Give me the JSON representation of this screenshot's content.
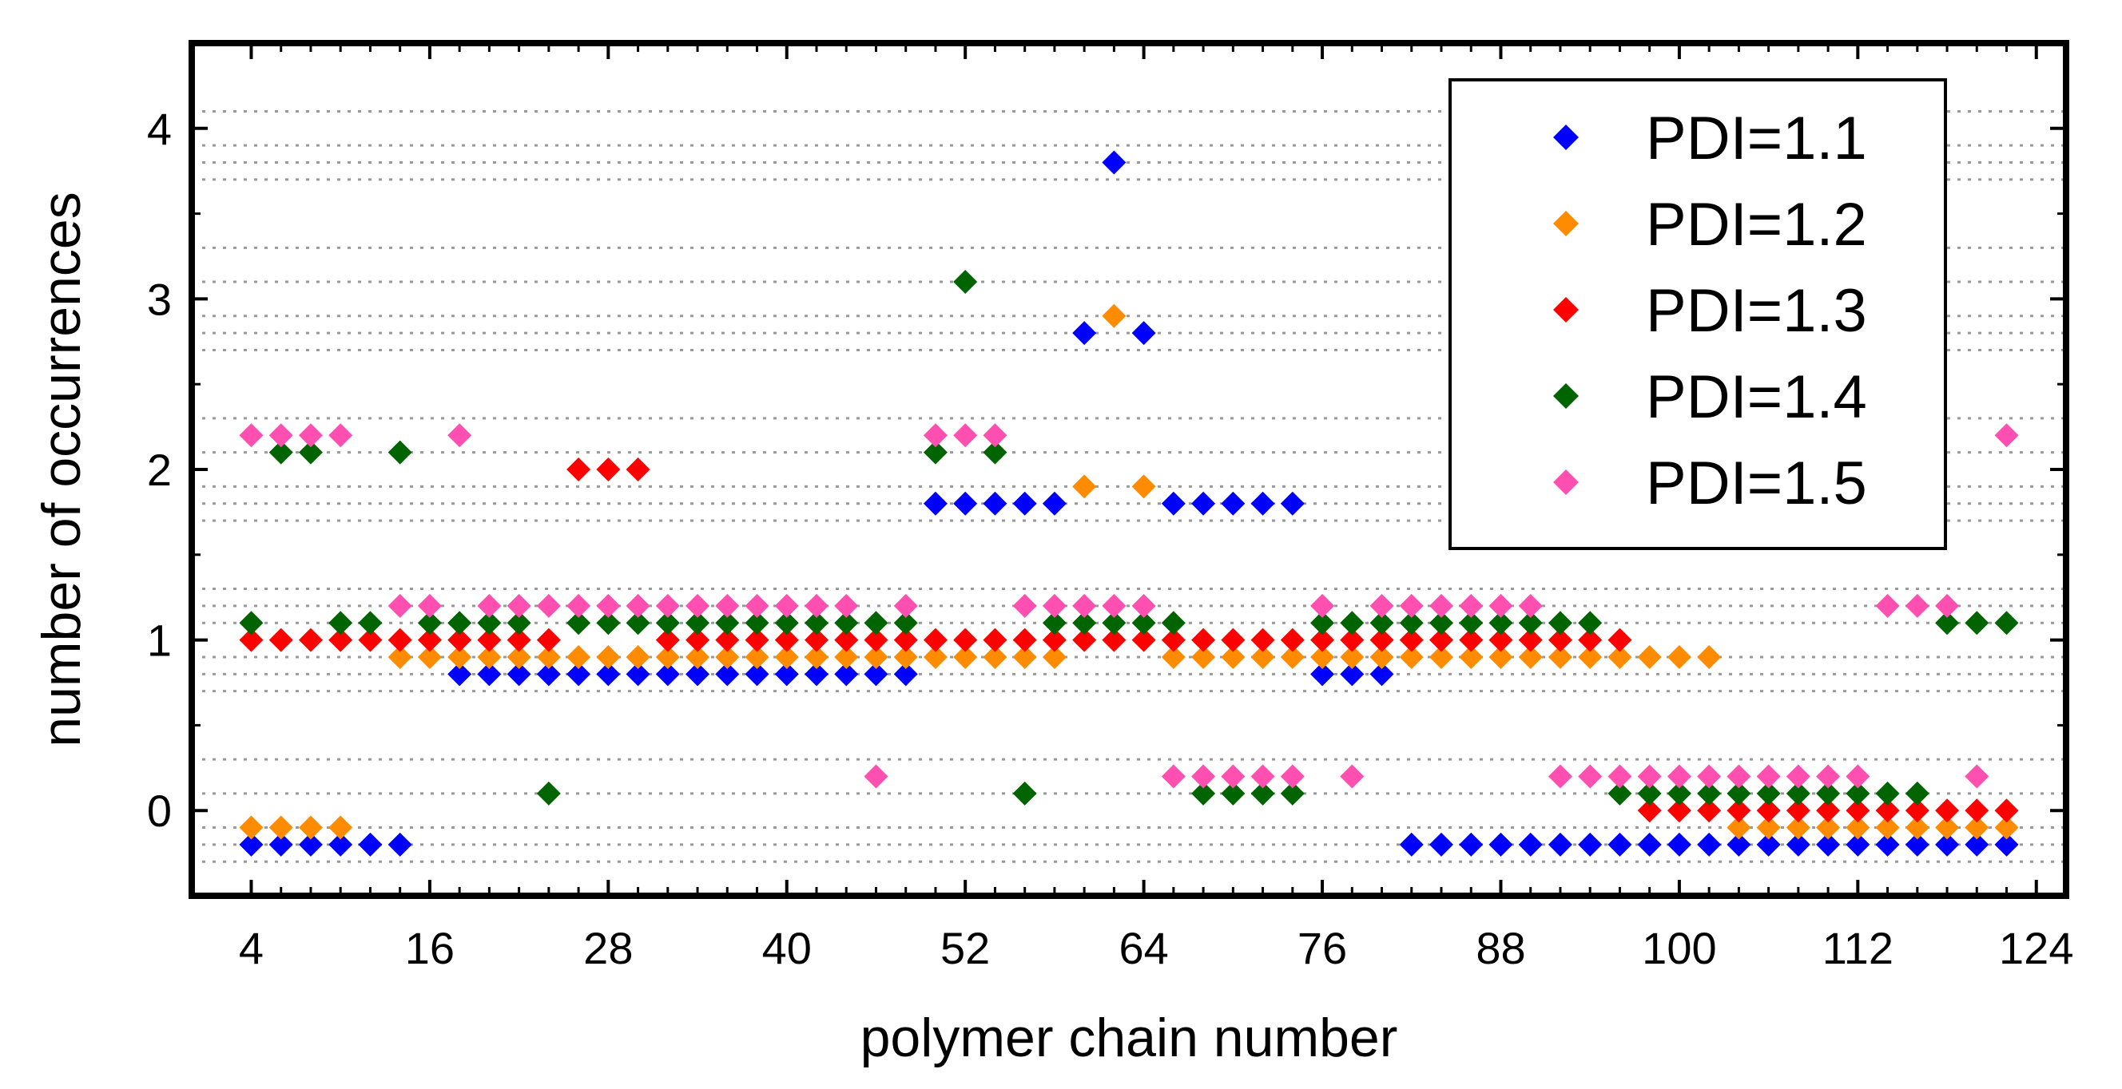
{
  "chart_data": {
    "type": "scatter",
    "xlabel": "polymer chain number",
    "ylabel": "number of occurrences",
    "xlim": [
      0,
      126
    ],
    "ylim": [
      -0.5,
      4.5
    ],
    "x_ticks": [
      4,
      16,
      28,
      40,
      52,
      64,
      76,
      88,
      100,
      112,
      124
    ],
    "y_ticks": [
      0,
      1,
      2,
      3,
      4
    ],
    "y_gridlines": [
      -0.3,
      -0.2,
      -0.1,
      0.1,
      0.3,
      0.7,
      0.8,
      0.9,
      1.1,
      1.2,
      1.3,
      1.7,
      1.8,
      1.9,
      2.1,
      2.3,
      2.7,
      2.8,
      2.9,
      3.1,
      3.3,
      3.7,
      3.8,
      3.9,
      4.1
    ],
    "grid_style": "dotted horizontal",
    "legend_position": "top-right",
    "marker": "diamond",
    "series": [
      {
        "name": "PDI=1.1",
        "color": "#0000ff",
        "offset": -0.2,
        "x": [
          4,
          6,
          8,
          10,
          12,
          14,
          18,
          20,
          22,
          24,
          26,
          28,
          30,
          32,
          34,
          36,
          38,
          40,
          42,
          44,
          46,
          48,
          50,
          52,
          54,
          56,
          58,
          60,
          62,
          64,
          66,
          68,
          70,
          72,
          74,
          76,
          78,
          80,
          82,
          84,
          86,
          88,
          90,
          92,
          94,
          96,
          98,
          100,
          102,
          104,
          106,
          108,
          110,
          112,
          114,
          116,
          118,
          120,
          122
        ],
        "y": [
          0,
          0,
          0,
          0,
          0,
          0,
          1,
          1,
          1,
          1,
          1,
          1,
          1,
          1,
          1,
          1,
          1,
          1,
          1,
          1,
          1,
          1,
          2,
          2,
          2,
          2,
          2,
          3,
          4,
          3,
          2,
          2,
          2,
          2,
          2,
          1,
          1,
          1,
          0,
          0,
          0,
          0,
          0,
          0,
          0,
          0,
          0,
          0,
          0,
          0,
          0,
          0,
          0,
          0,
          0,
          0,
          0,
          0,
          0
        ]
      },
      {
        "name": "PDI=1.2",
        "color": "#ff8c00",
        "offset": -0.1,
        "x": [
          4,
          6,
          8,
          10,
          14,
          16,
          18,
          20,
          22,
          24,
          26,
          28,
          30,
          32,
          34,
          36,
          38,
          40,
          42,
          44,
          46,
          48,
          50,
          52,
          54,
          56,
          58,
          60,
          62,
          64,
          66,
          68,
          70,
          72,
          74,
          76,
          78,
          80,
          82,
          84,
          86,
          88,
          90,
          92,
          94,
          96,
          98,
          100,
          102,
          104,
          106,
          108,
          110,
          112,
          114,
          116,
          118,
          120,
          122
        ],
        "y": [
          0,
          0,
          0,
          0,
          1,
          1,
          1,
          1,
          1,
          1,
          1,
          1,
          1,
          1,
          1,
          1,
          1,
          1,
          1,
          1,
          1,
          1,
          1,
          1,
          1,
          1,
          1,
          2,
          3,
          2,
          1,
          1,
          1,
          1,
          1,
          1,
          1,
          1,
          1,
          1,
          1,
          1,
          1,
          1,
          1,
          1,
          1,
          1,
          1,
          0,
          0,
          0,
          0,
          0,
          0,
          0,
          0,
          0,
          0
        ]
      },
      {
        "name": "PDI=1.3",
        "color": "#ff0000",
        "offset": 0.0,
        "x": [
          4,
          6,
          8,
          10,
          12,
          14,
          16,
          18,
          20,
          22,
          24,
          26,
          28,
          30,
          32,
          34,
          36,
          38,
          40,
          42,
          44,
          46,
          48,
          50,
          52,
          54,
          56,
          58,
          60,
          62,
          64,
          66,
          68,
          70,
          72,
          74,
          76,
          78,
          80,
          82,
          84,
          86,
          88,
          90,
          92,
          94,
          96,
          98,
          100,
          102,
          104,
          106,
          108,
          110,
          112,
          114,
          116,
          118,
          120,
          122
        ],
        "y": [
          1,
          1,
          1,
          1,
          1,
          1,
          1,
          1,
          1,
          1,
          1,
          2,
          2,
          2,
          1,
          1,
          1,
          1,
          1,
          1,
          1,
          1,
          1,
          1,
          1,
          1,
          1,
          1,
          1,
          1,
          1,
          1,
          1,
          1,
          1,
          1,
          1,
          1,
          1,
          1,
          1,
          1,
          1,
          1,
          1,
          1,
          1,
          0,
          0,
          0,
          0,
          0,
          0,
          0,
          0,
          0,
          0,
          0,
          0,
          0
        ]
      },
      {
        "name": "PDI=1.4",
        "color": "#006400",
        "offset": 0.1,
        "x": [
          4,
          6,
          8,
          10,
          12,
          14,
          16,
          18,
          20,
          22,
          24,
          26,
          28,
          30,
          32,
          34,
          36,
          38,
          40,
          42,
          44,
          46,
          48,
          50,
          52,
          54,
          56,
          58,
          60,
          62,
          64,
          66,
          68,
          70,
          72,
          74,
          76,
          78,
          80,
          82,
          84,
          86,
          88,
          90,
          92,
          94,
          96,
          98,
          100,
          102,
          104,
          106,
          108,
          110,
          112,
          114,
          116,
          118,
          120,
          122
        ],
        "y": [
          1,
          2,
          2,
          1,
          1,
          2,
          1,
          1,
          1,
          1,
          0,
          1,
          1,
          1,
          1,
          1,
          1,
          1,
          1,
          1,
          1,
          1,
          1,
          2,
          3,
          2,
          0,
          1,
          1,
          1,
          1,
          1,
          0,
          0,
          0,
          0,
          1,
          1,
          1,
          1,
          1,
          1,
          1,
          1,
          1,
          1,
          0,
          0,
          0,
          0,
          0,
          0,
          0,
          0,
          0,
          0,
          0,
          1,
          1,
          1
        ]
      },
      {
        "name": "PDI=1.5",
        "color": "#ff4fb0",
        "offset": 0.2,
        "x": [
          4,
          6,
          8,
          10,
          14,
          16,
          18,
          20,
          22,
          24,
          26,
          28,
          30,
          32,
          34,
          36,
          38,
          40,
          42,
          44,
          46,
          48,
          50,
          52,
          54,
          56,
          58,
          60,
          62,
          64,
          66,
          68,
          70,
          72,
          74,
          76,
          78,
          80,
          82,
          84,
          86,
          88,
          90,
          92,
          94,
          96,
          98,
          100,
          102,
          104,
          106,
          108,
          110,
          112,
          114,
          116,
          118,
          120,
          122
        ],
        "y": [
          2,
          2,
          2,
          2,
          1,
          1,
          2,
          1,
          1,
          1,
          1,
          1,
          1,
          1,
          1,
          1,
          1,
          1,
          1,
          1,
          0,
          1,
          2,
          2,
          2,
          1,
          1,
          1,
          1,
          1,
          0,
          0,
          0,
          0,
          0,
          1,
          0,
          1,
          1,
          1,
          1,
          1,
          1,
          0,
          0,
          0,
          0,
          0,
          0,
          0,
          0,
          0,
          0,
          0,
          1,
          1,
          1,
          0,
          2
        ]
      }
    ]
  }
}
